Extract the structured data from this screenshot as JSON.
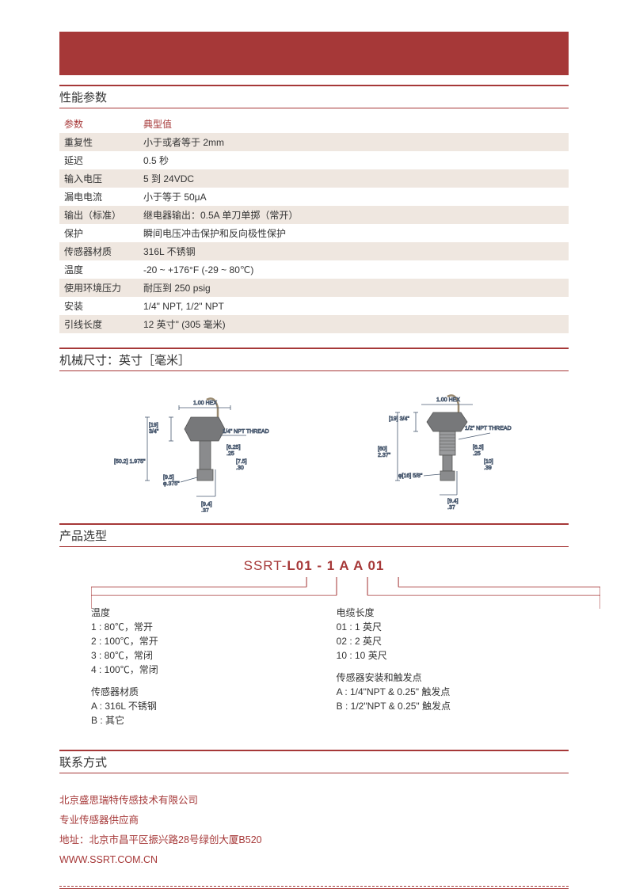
{
  "colors": {
    "accent": "#a63838",
    "shade": "#efe7e0",
    "text": "#333333",
    "diagram_body": "#77787a",
    "diagram_line": "#4a5a70"
  },
  "sections": {
    "spec": "性能参数",
    "dims": "机械尺寸：英寸［毫米］",
    "model": "产品选型",
    "contact": "联系方式"
  },
  "spec_header": {
    "param": "参数",
    "typ": "典型值"
  },
  "spec_rows": [
    {
      "p": "重复性",
      "v": "小于或者等于 2mm",
      "shade": true
    },
    {
      "p": "延迟",
      "v": "0.5 秒",
      "shade": false
    },
    {
      "p": "输入电压",
      "v": "5 到 24VDC",
      "shade": true
    },
    {
      "p": "漏电电流",
      "v": "小于等于 50μA",
      "shade": false
    },
    {
      "p": "输出（标准）",
      "v": "继电器输出：0.5A 单刀单掷（常开）",
      "shade": true
    },
    {
      "p": "保护",
      "v": "瞬间电压冲击保护和反向极性保护",
      "shade": false
    },
    {
      "p": "传感器材质",
      "v": "316L 不锈钢",
      "shade": true
    },
    {
      "p": "温度",
      "v": "-20 ~ +176°F (-29 ~ 80℃)",
      "shade": false
    },
    {
      "p": "使用环境压力",
      "v": "耐压到 250 psig",
      "shade": true
    },
    {
      "p": "安装",
      "v": "1/4\" NPT, 1/2\" NPT",
      "shade": false
    },
    {
      "p": "引线长度",
      "v": "12 英寸\" (305 毫米)",
      "shade": true
    }
  ],
  "diagram_labels": {
    "hex": "1.00 HEX",
    "thread_a": "1/4\" NPT THREAD",
    "thread_b": "1/2\" NPT THREAD",
    "d19": "[19]\n3/4\"",
    "d50": "[50.2] 1.975\"",
    "d95": "[9.5]\nφ.375\"",
    "d625": "[6.25]\n.25",
    "d75": "[7.5]\n.30",
    "d94": "[9.4]\n.37",
    "d60": "[60]\n2.37\"",
    "d16": "φ[16] 5/8\"",
    "d63": "[6.3]\n.25",
    "d10": "[10]\n.39"
  },
  "model_code": {
    "prefix": "SSRT-",
    "bold": "L01 - 1   A   A 01"
  },
  "model_groups": {
    "left": [
      {
        "title": "温度",
        "lines": [
          "1 : 80℃，常开",
          "2 : 100℃，常开",
          "3 : 80℃，常闭",
          "4 : 100℃，常闭"
        ]
      },
      {
        "title": "传感器材质",
        "lines": [
          "A : 316L 不锈钢",
          "B : 其它"
        ]
      }
    ],
    "right": [
      {
        "title": "电缆长度",
        "lines": [
          "01 : 1 英尺",
          "02 : 2 英尺",
          "10 : 10 英尺"
        ]
      },
      {
        "title": "传感器安装和触发点",
        "lines": [
          "A : 1/4\"NPT & 0.25\" 触发点",
          "B : 1/2\"NPT & 0.25\" 触发点"
        ]
      }
    ]
  },
  "contact": {
    "l1": "北京盛思瑞特传感技术有限公司",
    "l2": "专业传感器供应商",
    "l3": "地址：北京市昌平区振兴路28号绿创大厦B520",
    "l4": "WWW.SSRT.COM.CN"
  }
}
